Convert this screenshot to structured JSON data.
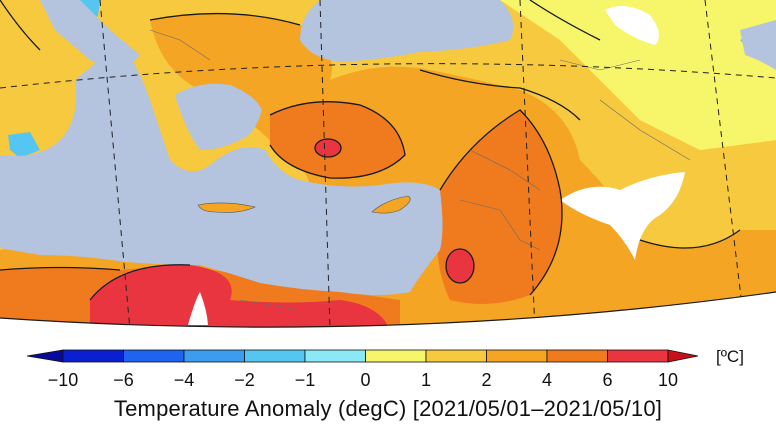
{
  "map": {
    "colors": {
      "sea": "#b4c3de",
      "no_data": "#ffffff",
      "contour": "#1a1a1a",
      "graticule": "#222222",
      "border": "#555555"
    }
  },
  "legend": {
    "unit": "[ºC]",
    "ticks": [
      "−10",
      "−6",
      "−4",
      "−2",
      "−1",
      "0",
      "1",
      "2",
      "4",
      "6",
      "10"
    ],
    "classes": [
      {
        "range": [
          -10,
          -6
        ],
        "color": "#0a1fd2"
      },
      {
        "range": [
          -6,
          -4
        ],
        "color": "#1f64ee"
      },
      {
        "range": [
          -4,
          -2
        ],
        "color": "#3a9df0"
      },
      {
        "range": [
          -2,
          -1
        ],
        "color": "#55c6f2"
      },
      {
        "range": [
          -1,
          0
        ],
        "color": "#8be8f5"
      },
      {
        "range": [
          0,
          1
        ],
        "color": "#f7f56a"
      },
      {
        "range": [
          1,
          2
        ],
        "color": "#f7c93e"
      },
      {
        "range": [
          2,
          4
        ],
        "color": "#f4a524"
      },
      {
        "range": [
          4,
          6
        ],
        "color": "#ef7b1e"
      },
      {
        "range": [
          6,
          10
        ],
        "color": "#e9353f"
      }
    ],
    "over_color": "#c8101a",
    "under_color": "#0a0a9a"
  },
  "caption": "Temperature Anomaly (degC) [2021/05/01–2021/05/10]"
}
